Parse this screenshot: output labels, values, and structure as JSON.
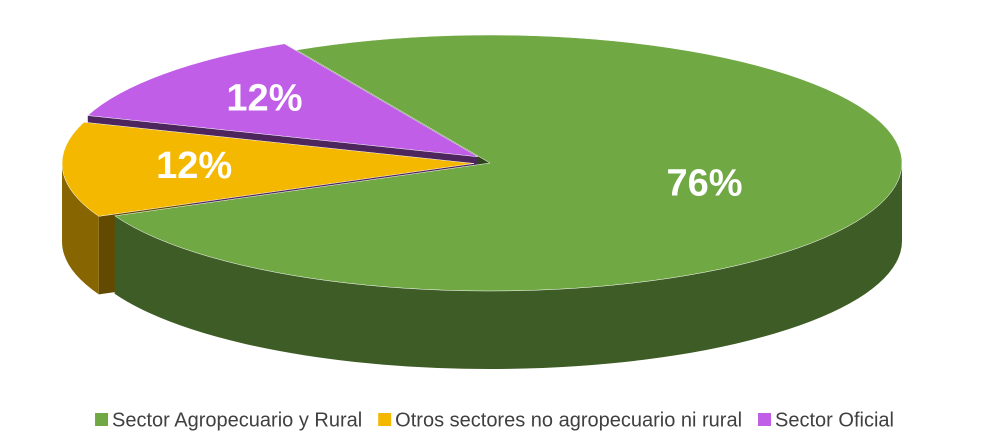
{
  "chart_data": {
    "type": "pie",
    "categories": [
      "Sector Agropecuario y Rural",
      "Otros sectores no agropecuario ni rural",
      "Sector Oficial"
    ],
    "values": [
      76,
      12,
      12
    ],
    "value_labels": [
      "76%",
      "12%",
      "12%"
    ],
    "colors": [
      "#70a844",
      "#f5b800",
      "#c05ee8"
    ],
    "legend": "bottom"
  }
}
